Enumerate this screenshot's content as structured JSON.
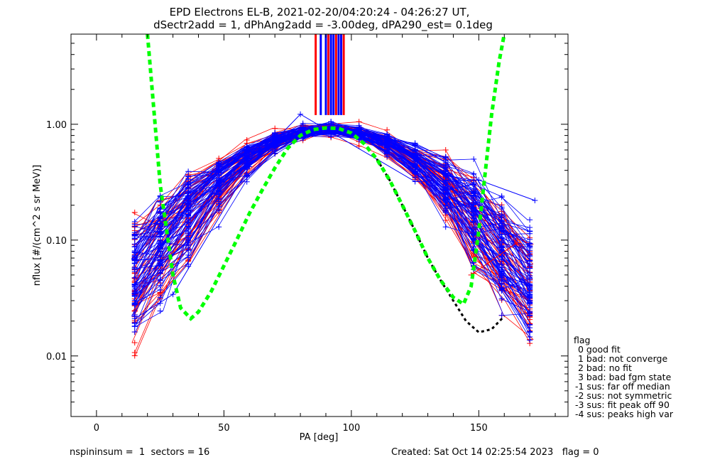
{
  "chart_data": {
    "type": "line",
    "title_line1": "EPD Electrons EL-B, 2021-02-20/04:20:24 - 04:26:27 UT,",
    "title_line2": "dSectr2add = 1, dPhAng2add = -3.00deg, dPA290_est=   0.1deg",
    "xlabel": "PA [deg]",
    "ylabel": "nflux [#/(cm^2 s sr MeV)]",
    "xlim": [
      -10,
      185
    ],
    "ylim": [
      0.003,
      6.0
    ],
    "yscale": "log",
    "x_ticks": [
      0,
      50,
      100,
      150
    ],
    "x_tick_labels": [
      "0",
      "50",
      "100",
      "150"
    ],
    "y_ticks": [
      0.01,
      0.1,
      1.0
    ],
    "y_tick_labels": [
      "0.01",
      "0.10",
      "1.00"
    ],
    "series_colors": {
      "red_traces": "#ff0000",
      "blue_traces": "#0000ff",
      "fit": "#00ff00",
      "median": "#000000"
    },
    "fit_curve": {
      "style": "dashed",
      "x": [
        20,
        25,
        30,
        33,
        37,
        40,
        45,
        50,
        55,
        60,
        65,
        70,
        75,
        80,
        85,
        90,
        95,
        100,
        105,
        110,
        115,
        120,
        125,
        130,
        135,
        140,
        144,
        147,
        150,
        155,
        158,
        160
      ],
      "y": [
        6.0,
        0.3,
        0.05,
        0.026,
        0.021,
        0.024,
        0.036,
        0.06,
        0.1,
        0.17,
        0.27,
        0.42,
        0.62,
        0.8,
        0.9,
        0.93,
        0.92,
        0.84,
        0.68,
        0.5,
        0.33,
        0.2,
        0.12,
        0.07,
        0.045,
        0.032,
        0.028,
        0.04,
        0.12,
        1.2,
        3.5,
        6.0
      ]
    },
    "median_curve": {
      "style": "dashed",
      "x": [
        110,
        115,
        120,
        125,
        130,
        135,
        140,
        145,
        150,
        155,
        160
      ],
      "y": [
        0.5,
        0.33,
        0.2,
        0.12,
        0.07,
        0.045,
        0.03,
        0.02,
        0.016,
        0.017,
        0.022
      ]
    },
    "outlier_blue": {
      "x": [
        15,
        30,
        60,
        80,
        125,
        150,
        172
      ],
      "y": [
        0.021,
        0.034,
        0.43,
        1.22,
        0.32,
        0.33,
        0.22
      ]
    },
    "outlier_red": {
      "x": [
        147,
        165
      ],
      "y": [
        0.05,
        0.095
      ]
    },
    "vertical_bars_x": [
      86,
      88,
      90,
      91,
      92,
      93,
      94,
      95,
      96,
      97
    ],
    "vertical_bar_colors": [
      "#ff0000",
      "#0000ff",
      "#0000ff",
      "#ff0000",
      "#0000ff",
      "#0000ff",
      "#ff0000",
      "#0000ff",
      "#0000ff",
      "#ff0000"
    ],
    "vertical_bar_bottom_y": 1.2
  },
  "legend": {
    "title": "flag",
    "entries": [
      " 0 good fit",
      " 1 bad: not converge",
      " 2 bad: no fit",
      " 3 bad: bad fgm state",
      "-1 sus: far off median",
      "-2 sus: not symmetric",
      "-3 sus: fit peak off 90",
      "-4 sus: peaks high var"
    ]
  },
  "footer": {
    "left": "nspininsum =  1  sectors = 16",
    "right": "Created: Sat Oct 14 02:25:54 2023   flag = 0"
  }
}
